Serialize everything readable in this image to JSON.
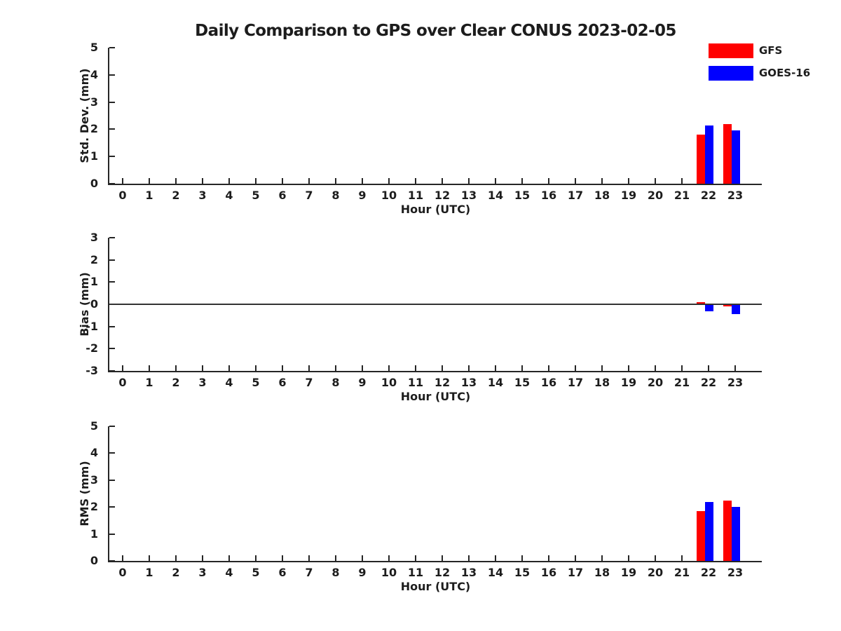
{
  "title": "Daily Comparison to GPS over Clear CONUS 2023-02-05",
  "legend": {
    "position": "top-right",
    "items": [
      {
        "label": "GFS",
        "color": "#ff0000"
      },
      {
        "label": "GOES-16",
        "color": "#0000ff"
      }
    ]
  },
  "colors": {
    "axis": "#262626",
    "zero_line": "#333333",
    "text": "#1c1c1c",
    "background": "#ffffff"
  },
  "chart_data": [
    {
      "type": "bar",
      "title": "",
      "xlabel": "Hour (UTC)",
      "ylabel": "Std. Dev. (mm)",
      "xlim": [
        -0.5,
        24
      ],
      "ylim": [
        0,
        5
      ],
      "yticks": [
        0,
        1,
        2,
        3,
        4,
        5
      ],
      "xticks": [
        0,
        1,
        2,
        3,
        4,
        5,
        6,
        7,
        8,
        9,
        10,
        11,
        12,
        13,
        14,
        15,
        16,
        17,
        18,
        19,
        20,
        21,
        22,
        23
      ],
      "grid": false,
      "zero_line": false,
      "x": [
        22,
        23
      ],
      "series": [
        {
          "name": "GFS",
          "color": "#ff0000",
          "values": [
            1.8,
            2.2
          ]
        },
        {
          "name": "GOES-16",
          "color": "#0000ff",
          "values": [
            2.15,
            1.95
          ]
        }
      ]
    },
    {
      "type": "bar",
      "title": "",
      "xlabel": "Hour (UTC)",
      "ylabel": "Bias (mm)",
      "xlim": [
        -0.5,
        24
      ],
      "ylim": [
        -3,
        3
      ],
      "yticks": [
        -3,
        -2,
        -1,
        0,
        1,
        2,
        3
      ],
      "xticks": [
        0,
        1,
        2,
        3,
        4,
        5,
        6,
        7,
        8,
        9,
        10,
        11,
        12,
        13,
        14,
        15,
        16,
        17,
        18,
        19,
        20,
        21,
        22,
        23
      ],
      "grid": false,
      "zero_line": true,
      "x": [
        22,
        23
      ],
      "series": [
        {
          "name": "GFS",
          "color": "#ff0000",
          "values": [
            0.1,
            -0.1
          ]
        },
        {
          "name": "GOES-16",
          "color": "#0000ff",
          "values": [
            -0.3,
            -0.45
          ]
        }
      ]
    },
    {
      "type": "bar",
      "title": "",
      "xlabel": "Hour (UTC)",
      "ylabel": "RMS (mm)",
      "xlim": [
        -0.5,
        24
      ],
      "ylim": [
        0,
        5
      ],
      "yticks": [
        0,
        1,
        2,
        3,
        4,
        5
      ],
      "xticks": [
        0,
        1,
        2,
        3,
        4,
        5,
        6,
        7,
        8,
        9,
        10,
        11,
        12,
        13,
        14,
        15,
        16,
        17,
        18,
        19,
        20,
        21,
        22,
        23
      ],
      "grid": false,
      "zero_line": true,
      "x": [
        22,
        23
      ],
      "series": [
        {
          "name": "GFS",
          "color": "#ff0000",
          "values": [
            1.85,
            2.25
          ]
        },
        {
          "name": "GOES-16",
          "color": "#0000ff",
          "values": [
            2.2,
            2.0
          ]
        }
      ]
    }
  ]
}
